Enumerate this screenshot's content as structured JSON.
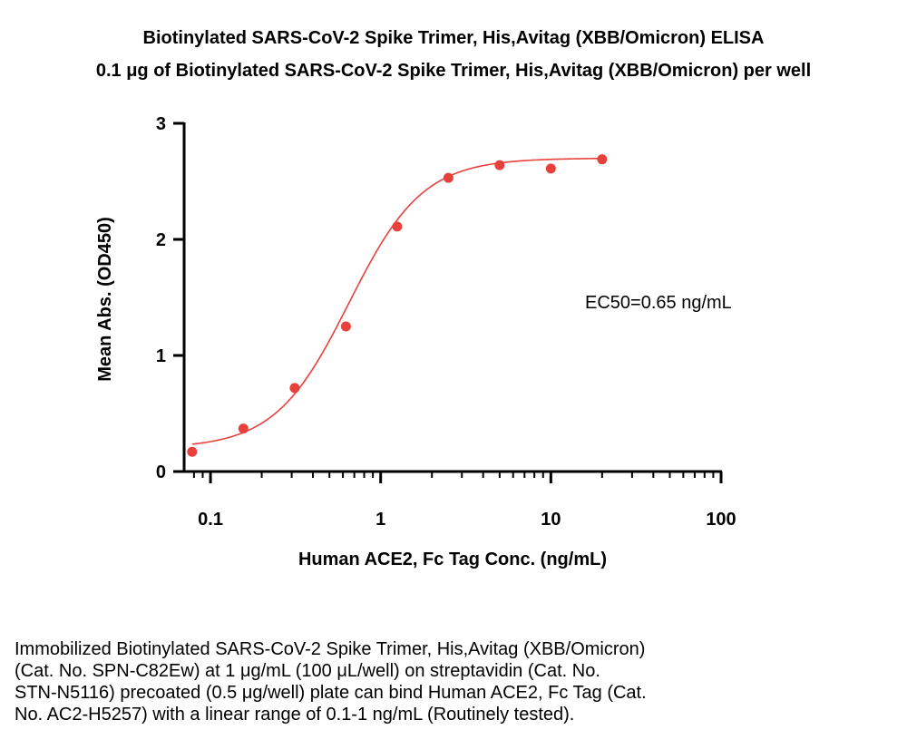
{
  "chart_data": {
    "type": "scatter",
    "title": "Biotinylated SARS-CoV-2 Spike Trimer, His,Avitag (XBB/Omicron) ELISA",
    "subtitle": "0.1 μg of Biotinylated SARS-CoV-2 Spike Trimer, His,Avitag (XBB/Omicron) per well",
    "xlabel": "Human ACE2, Fc Tag Conc. (ng/mL)",
    "ylabel": "Mean Abs. (OD450)",
    "x_scale": "log",
    "xlim": [
      0.07,
      100
    ],
    "ylim": [
      0,
      3
    ],
    "xticks": [
      "0.1",
      "1",
      "10",
      "100"
    ],
    "yticks": [
      "0",
      "1",
      "2",
      "3"
    ],
    "grid": false,
    "annotation": "EC50=0.65 ng/mL",
    "point_color": "#e8413c",
    "curve_color": "#e8413c",
    "series": [
      {
        "x": [
          0.078,
          0.156,
          0.3125,
          0.625,
          1.25,
          2.5,
          5,
          10,
          20
        ],
        "y": [
          0.17,
          0.37,
          0.72,
          1.25,
          2.11,
          2.53,
          2.64,
          2.61,
          2.69
        ]
      }
    ],
    "fit": {
      "bottom": 0.2,
      "top": 2.7,
      "ec50": 0.65,
      "hill": 2.0
    }
  },
  "caption": [
    "Immobilized Biotinylated SARS-CoV-2 Spike Trimer, His,Avitag (XBB/Omicron)",
    "(Cat. No. SPN-C82Ew) at 1 μg/mL (100 μL/well) on streptavidin (Cat. No.",
    "STN-N5116) precoated (0.5 μg/well) plate can bind Human ACE2, Fc Tag (Cat.",
    "No. AC2-H5257) with a linear range of 0.1-1 ng/mL (Routinely tested)."
  ]
}
